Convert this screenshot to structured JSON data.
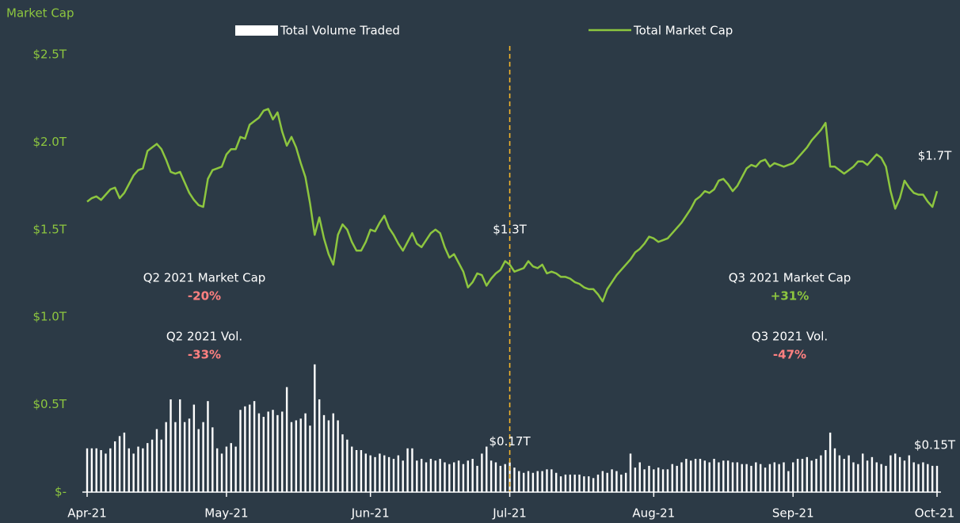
{
  "chart_data": {
    "type": "bar-line",
    "y_axis_title": "Market Cap",
    "categories": [
      "Apr-21",
      null,
      null,
      null,
      null,
      null,
      null,
      null,
      null,
      null,
      null,
      null,
      null,
      null,
      null,
      null,
      null,
      null,
      null,
      null,
      null,
      null,
      null,
      null,
      null,
      null,
      null,
      null,
      null,
      null,
      "May-21",
      null,
      null,
      null,
      null,
      null,
      null,
      null,
      null,
      null,
      null,
      null,
      null,
      null,
      null,
      null,
      null,
      null,
      null,
      null,
      null,
      null,
      null,
      null,
      null,
      null,
      null,
      null,
      null,
      null,
      null,
      "Jun-21",
      null,
      null,
      null,
      null,
      null,
      null,
      null,
      null,
      null,
      null,
      null,
      null,
      null,
      null,
      null,
      null,
      null,
      null,
      null,
      null,
      null,
      null,
      null,
      null,
      null,
      null,
      null,
      null,
      null,
      "Jul-21",
      null,
      null,
      null,
      null,
      null,
      null,
      null,
      null,
      null,
      null,
      null,
      null,
      null,
      null,
      null,
      null,
      null,
      null,
      null,
      null,
      null,
      null,
      null,
      null,
      null,
      null,
      null,
      null,
      null,
      null,
      "Aug-21",
      null,
      null,
      null,
      null,
      null,
      null,
      null,
      null,
      null,
      null,
      null,
      null,
      null,
      null,
      null,
      null,
      null,
      null,
      null,
      null,
      null,
      null,
      null,
      null,
      null,
      null,
      null,
      null,
      null,
      "Sep-21",
      null,
      null,
      null,
      null,
      null,
      null,
      null,
      null,
      null,
      null,
      null,
      null,
      null,
      null,
      null,
      null,
      null,
      null,
      null,
      null,
      null,
      null,
      null,
      null,
      null,
      null,
      null,
      null,
      null,
      null,
      "Oct-21"
    ],
    "series": [
      {
        "name": "Total Volume Traded",
        "kind": "bar",
        "color": "#ffffff",
        "values": [
          0.25,
          0.25,
          0.25,
          0.24,
          0.22,
          0.25,
          0.29,
          0.32,
          0.34,
          0.25,
          0.22,
          0.26,
          0.25,
          0.28,
          0.3,
          0.36,
          0.3,
          0.4,
          0.53,
          0.4,
          0.53,
          0.4,
          0.42,
          0.5,
          0.36,
          0.4,
          0.52,
          0.37,
          0.25,
          0.22,
          0.26,
          0.28,
          0.26,
          0.47,
          0.49,
          0.5,
          0.52,
          0.45,
          0.43,
          0.46,
          0.47,
          0.44,
          0.46,
          0.6,
          0.4,
          0.41,
          0.42,
          0.45,
          0.38,
          0.73,
          0.53,
          0.44,
          0.41,
          0.45,
          0.41,
          0.33,
          0.3,
          0.26,
          0.24,
          0.24,
          0.22,
          0.21,
          0.2,
          0.22,
          0.21,
          0.2,
          0.19,
          0.21,
          0.18,
          0.25,
          0.25,
          0.18,
          0.19,
          0.17,
          0.19,
          0.18,
          0.19,
          0.17,
          0.16,
          0.17,
          0.18,
          0.16,
          0.18,
          0.19,
          0.15,
          0.22,
          0.26,
          0.18,
          0.17,
          0.15,
          0.16,
          0.17,
          0.14,
          0.12,
          0.11,
          0.12,
          0.11,
          0.12,
          0.12,
          0.13,
          0.13,
          0.11,
          0.09,
          0.1,
          0.1,
          0.1,
          0.1,
          0.09,
          0.09,
          0.08,
          0.1,
          0.12,
          0.11,
          0.13,
          0.12,
          0.1,
          0.11,
          0.22,
          0.14,
          0.17,
          0.13,
          0.15,
          0.13,
          0.14,
          0.13,
          0.13,
          0.16,
          0.15,
          0.17,
          0.19,
          0.18,
          0.19,
          0.19,
          0.18,
          0.17,
          0.19,
          0.17,
          0.18,
          0.18,
          0.17,
          0.17,
          0.16,
          0.16,
          0.15,
          0.17,
          0.16,
          0.14,
          0.16,
          0.17,
          0.16,
          0.17,
          0.12,
          0.17,
          0.19,
          0.19,
          0.2,
          0.18,
          0.19,
          0.21,
          0.24,
          0.34,
          0.25,
          0.21,
          0.19,
          0.21,
          0.17,
          0.16,
          0.22,
          0.18,
          0.2,
          0.17,
          0.16,
          0.15,
          0.21,
          0.22,
          0.2,
          0.18,
          0.21,
          0.17,
          0.16,
          0.17,
          0.16,
          0.15,
          0.15
        ],
        "value_labels": [
          null,
          null,
          null,
          null,
          null,
          null,
          null,
          null,
          null,
          null,
          null,
          null,
          null,
          null,
          null,
          null,
          null,
          null,
          null,
          null,
          null,
          null,
          null,
          null,
          null,
          null,
          null,
          null,
          null,
          null,
          null,
          null,
          null,
          null,
          null,
          null,
          null,
          null,
          null,
          null,
          null,
          null,
          null,
          null,
          null,
          null,
          null,
          null,
          null,
          null,
          null,
          null,
          null,
          null,
          null,
          null,
          null,
          null,
          null,
          null,
          null,
          null,
          null,
          null,
          null,
          null,
          null,
          null,
          null,
          null,
          null,
          null,
          null,
          null,
          null,
          null,
          null,
          null,
          null,
          null,
          null,
          null,
          null,
          null,
          null,
          null,
          null,
          null,
          null,
          null,
          null,
          "$0.17T",
          null,
          null,
          null,
          null,
          null,
          null,
          null,
          null,
          null,
          null,
          null,
          null,
          null,
          null,
          null,
          null,
          null,
          null,
          null,
          null,
          null,
          null,
          null,
          null,
          null,
          null,
          null,
          null,
          null,
          null,
          null,
          null,
          null,
          null,
          null,
          null,
          null,
          null,
          null,
          null,
          null,
          null,
          null,
          null,
          null,
          null,
          null,
          null,
          null,
          null,
          null,
          null,
          null,
          null,
          null,
          null,
          null,
          null,
          null,
          null,
          null,
          null,
          null,
          null,
          null,
          null,
          null,
          null,
          null,
          null,
          null,
          null,
          null,
          null,
          null,
          null,
          null,
          null,
          null,
          null,
          null,
          null,
          null,
          null,
          null,
          null,
          null,
          null,
          null,
          null,
          null,
          "$0.15T"
        ]
      },
      {
        "name": "Total Market Cap",
        "kind": "line",
        "color": "#8dc63f",
        "values": [
          1.66,
          1.68,
          1.69,
          1.67,
          1.7,
          1.73,
          1.74,
          1.68,
          1.71,
          1.76,
          1.81,
          1.84,
          1.85,
          1.95,
          1.97,
          1.99,
          1.96,
          1.9,
          1.83,
          1.82,
          1.83,
          1.77,
          1.71,
          1.67,
          1.64,
          1.63,
          1.79,
          1.84,
          1.85,
          1.86,
          1.93,
          1.96,
          1.96,
          2.03,
          2.02,
          2.1,
          2.12,
          2.14,
          2.18,
          2.19,
          2.13,
          2.17,
          2.06,
          1.98,
          2.03,
          1.97,
          1.88,
          1.8,
          1.65,
          1.47,
          1.57,
          1.45,
          1.36,
          1.3,
          1.47,
          1.53,
          1.5,
          1.43,
          1.38,
          1.38,
          1.43,
          1.5,
          1.49,
          1.54,
          1.58,
          1.51,
          1.47,
          1.42,
          1.38,
          1.43,
          1.48,
          1.42,
          1.4,
          1.44,
          1.48,
          1.5,
          1.48,
          1.4,
          1.34,
          1.36,
          1.31,
          1.26,
          1.17,
          1.2,
          1.25,
          1.24,
          1.18,
          1.22,
          1.25,
          1.27,
          1.32,
          1.3,
          1.26,
          1.27,
          1.28,
          1.32,
          1.29,
          1.28,
          1.3,
          1.25,
          1.26,
          1.25,
          1.23,
          1.23,
          1.22,
          1.2,
          1.19,
          1.17,
          1.16,
          1.16,
          1.13,
          1.09,
          1.16,
          1.2,
          1.24,
          1.27,
          1.3,
          1.33,
          1.37,
          1.39,
          1.42,
          1.46,
          1.45,
          1.43,
          1.44,
          1.45,
          1.48,
          1.51,
          1.54,
          1.58,
          1.62,
          1.67,
          1.69,
          1.72,
          1.71,
          1.73,
          1.78,
          1.79,
          1.76,
          1.72,
          1.75,
          1.8,
          1.85,
          1.87,
          1.86,
          1.89,
          1.9,
          1.86,
          1.88,
          1.87,
          1.86,
          1.87,
          1.88,
          1.91,
          1.94,
          1.97,
          2.01,
          2.04,
          2.07,
          2.11,
          1.86,
          1.86,
          1.84,
          1.82,
          1.84,
          1.86,
          1.89,
          1.89,
          1.87,
          1.9,
          1.93,
          1.91,
          1.86,
          1.72,
          1.62,
          1.68,
          1.78,
          1.74,
          1.71,
          1.7,
          1.7,
          1.66,
          1.63,
          1.72
        ],
        "value_labels": [
          null,
          null,
          null,
          null,
          null,
          null,
          null,
          null,
          null,
          null,
          null,
          null,
          null,
          null,
          null,
          null,
          null,
          null,
          null,
          null,
          null,
          null,
          null,
          null,
          null,
          null,
          null,
          null,
          null,
          null,
          null,
          null,
          null,
          null,
          null,
          null,
          null,
          null,
          null,
          null,
          null,
          null,
          null,
          null,
          null,
          null,
          null,
          null,
          null,
          null,
          null,
          null,
          null,
          null,
          null,
          null,
          null,
          null,
          null,
          null,
          null,
          null,
          null,
          null,
          null,
          null,
          null,
          null,
          null,
          null,
          null,
          null,
          null,
          null,
          null,
          null,
          null,
          null,
          null,
          null,
          null,
          null,
          null,
          null,
          null,
          null,
          null,
          null,
          null,
          null,
          null,
          "$1.3T",
          null,
          null,
          null,
          null,
          null,
          null,
          null,
          null,
          null,
          null,
          null,
          null,
          null,
          null,
          null,
          null,
          null,
          null,
          null,
          null,
          null,
          null,
          null,
          null,
          null,
          null,
          null,
          null,
          null,
          null,
          null,
          null,
          null,
          null,
          null,
          null,
          null,
          null,
          null,
          null,
          null,
          null,
          null,
          null,
          null,
          null,
          null,
          null,
          null,
          null,
          null,
          null,
          null,
          null,
          null,
          null,
          null,
          null,
          null,
          null,
          null,
          null,
          null,
          null,
          null,
          null,
          null,
          null,
          null,
          null,
          null,
          null,
          null,
          null,
          null,
          null,
          null,
          null,
          null,
          null,
          null,
          null,
          null,
          null,
          null,
          null,
          null,
          null,
          null,
          null,
          null,
          "$1.7T"
        ]
      }
    ],
    "ylim": [
      0,
      2.5
    ],
    "yticks": [
      {
        "value": 0,
        "label": "$-"
      },
      {
        "value": 0.5,
        "label": "$0.5T"
      },
      {
        "value": 1,
        "label": "$1.0T"
      },
      {
        "value": 1.5,
        "label": "$1.5T"
      },
      {
        "value": 2,
        "label": "$2.0T"
      },
      {
        "value": 2.5,
        "label": "$2.5T"
      }
    ],
    "axis_color": "#8dc63f",
    "reference_line_color": "#f5b52a",
    "annotations": [
      {
        "title": "Q2 2021 Market Cap",
        "value": "-20%",
        "color": "#ff8080"
      },
      {
        "title": "Q2 2021 Vol.",
        "value": "-33%",
        "color": "#ff8080"
      },
      {
        "title": "Q3 2021 Market Cap",
        "value": "+31%",
        "color": "#8dc63f"
      },
      {
        "title": "Q3 2021 Vol.",
        "value": "-47%",
        "color": "#ff8080"
      }
    ]
  }
}
